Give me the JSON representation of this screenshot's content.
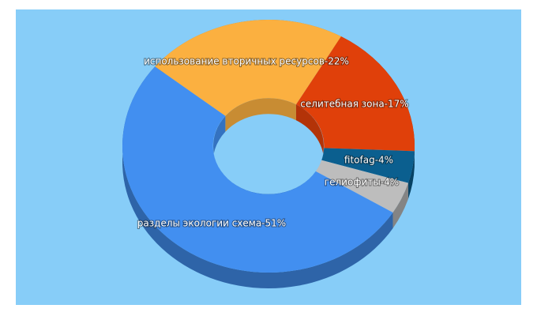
{
  "chart_data": {
    "type": "pie",
    "values": [
      22,
      17,
      4,
      4,
      51
    ],
    "value_labels": [
      "использование вторичных ресурсов-22%",
      "селитебная зона-17%",
      "fitofag-4%",
      "гелиофиты-4%",
      "разделы экологии схема-51%"
    ],
    "colors": [
      "#fbb040",
      "#e0400a",
      "#0b5f8f",
      "#bdbdbd",
      "#428ff0"
    ]
  }
}
